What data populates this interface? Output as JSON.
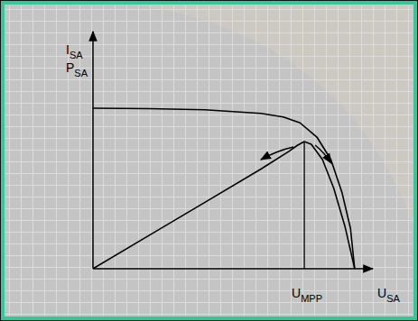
{
  "chart_data": {
    "type": "line",
    "y_labels": [
      {
        "text": "I",
        "sub": "SA"
      },
      {
        "text": "P",
        "sub": "SA"
      }
    ],
    "x_label": {
      "text": "U",
      "sub": "SA"
    },
    "xlim": [
      0,
      10
    ],
    "ylim": [
      0,
      10
    ],
    "xticks": [],
    "yticks": [],
    "tick_labels": false,
    "grid": false,
    "series": [
      {
        "color": "#000000",
        "line_style": "solid",
        "x": [
          0,
          2,
          4,
          6,
          6.8,
          7.4,
          8,
          8.5,
          8.9,
          9.2,
          9.35
        ],
        "values": [
          6.77,
          6.75,
          6.7,
          6.55,
          6.4,
          6.15,
          5.55,
          4.6,
          3.2,
          1.7,
          0
        ]
      },
      {
        "color": "#000000",
        "line_style": "solid",
        "x": [
          0,
          2,
          4,
          6,
          7,
          7.3,
          7.55,
          7.8,
          8.2,
          8.6,
          9,
          9.35
        ],
        "values": [
          0,
          1.4,
          2.8,
          4.2,
          4.95,
          5.2,
          5.36,
          5.25,
          4.6,
          3.4,
          1.8,
          0
        ]
      }
    ],
    "annotations": [
      {
        "x": 7.55,
        "y": 5.36,
        "text": "U",
        "sub": "MPP"
      }
    ]
  }
}
